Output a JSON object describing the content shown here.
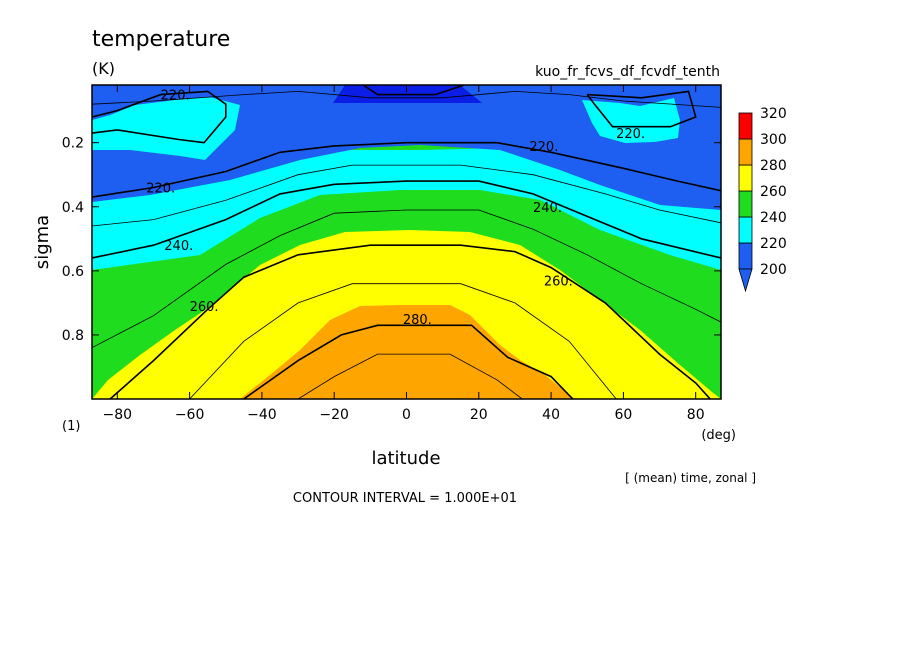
{
  "chart_data": {
    "type": "contour",
    "title": "temperature",
    "units": "(K)",
    "run_name": "kuo_fr_fcvs_df_fcvdf_tenth",
    "xlabel": "latitude",
    "x_unit": "(deg)",
    "ylabel": "sigma",
    "y_unit": "(1)",
    "xlim": [
      -87,
      87
    ],
    "ylim": [
      1.0,
      0.02
    ],
    "x_ticks": [
      -80,
      -60,
      -40,
      -20,
      0,
      20,
      40,
      60,
      80
    ],
    "x_tick_labels": [
      "−80",
      "−60",
      "−40",
      "−20",
      "0",
      "20",
      "40",
      "60",
      "80"
    ],
    "y_ticks": [
      0.2,
      0.4,
      0.6,
      0.8
    ],
    "y_tick_labels": [
      "0.2",
      "0.4",
      "0.6",
      "0.8"
    ],
    "averaging_note": "[ (mean) time, zonal ]",
    "contour_interval_text": "CONTOUR INTERVAL = 1.000E+01",
    "colorbar": {
      "levels": [
        200,
        220,
        240,
        260,
        280,
        300,
        320
      ],
      "labels": [
        "200",
        "220",
        "240",
        "260",
        "280",
        "300",
        "320"
      ],
      "colors": [
        "#1e5ef0",
        "#00ffff",
        "#1fdc1f",
        "#ffff00",
        "#ffa500",
        "#ff0000"
      ],
      "below_color": "#1e5ef0"
    },
    "fill_colors": {
      "lt200": "#0a1ee6",
      "200_220": "#1e5ef0",
      "220_240": "#00ffff",
      "240_260": "#1fdc1f",
      "260_280": "#ffff00",
      "280_300": "#ffa500"
    },
    "contours": [
      {
        "level": 200,
        "label": "",
        "thick": true,
        "points": [
          [
            -12,
            0.02
          ],
          [
            -8,
            0.05
          ],
          [
            8,
            0.05
          ],
          [
            16,
            0.02
          ]
        ]
      },
      {
        "level": 210,
        "label": "",
        "thick": false,
        "points": [
          [
            -87,
            0.08
          ],
          [
            -70,
            0.07
          ],
          [
            -45,
            0.05
          ],
          [
            -30,
            0.04
          ],
          [
            -10,
            0.06
          ],
          [
            10,
            0.06
          ],
          [
            30,
            0.04
          ],
          [
            45,
            0.05
          ],
          [
            60,
            0.07
          ],
          [
            87,
            0.09
          ]
        ]
      },
      {
        "level": 220,
        "label": "220.",
        "thick": true,
        "label_at": [
          -64,
          0.05
        ],
        "points": [
          [
            -87,
            0.12
          ],
          [
            -80,
            0.1
          ],
          [
            -68,
            0.05
          ],
          [
            -55,
            0.04
          ],
          [
            -50,
            0.08
          ],
          [
            -50,
            0.12
          ],
          [
            -56,
            0.2
          ],
          [
            -63,
            0.19
          ],
          [
            -80,
            0.16
          ],
          [
            -87,
            0.17
          ]
        ]
      },
      {
        "level": 220,
        "label": "220.",
        "thick": true,
        "label_at": [
          62,
          0.17
        ],
        "points": [
          [
            50,
            0.05
          ],
          [
            65,
            0.06
          ],
          [
            78,
            0.04
          ],
          [
            80,
            0.12
          ],
          [
            73,
            0.15
          ],
          [
            57,
            0.15
          ],
          [
            52,
            0.08
          ],
          [
            50,
            0.05
          ]
        ]
      },
      {
        "level": 220,
        "label": "220.",
        "thick": true,
        "label_at": [
          -68,
          0.34
        ],
        "points": [
          [
            -87,
            0.37
          ],
          [
            -70,
            0.34
          ],
          [
            -50,
            0.29
          ],
          [
            -35,
            0.23
          ],
          [
            -20,
            0.21
          ],
          [
            0,
            0.2
          ],
          [
            25,
            0.2
          ],
          [
            40,
            0.23
          ],
          [
            60,
            0.28
          ],
          [
            75,
            0.32
          ],
          [
            87,
            0.35
          ]
        ]
      },
      {
        "level": 220,
        "label": "220.",
        "thick": true,
        "label_at": [
          38,
          0.21
        ],
        "points": []
      },
      {
        "level": 230,
        "label": "",
        "thick": false,
        "points": [
          [
            -87,
            0.46
          ],
          [
            -70,
            0.44
          ],
          [
            -50,
            0.38
          ],
          [
            -30,
            0.3
          ],
          [
            -15,
            0.27
          ],
          [
            15,
            0.27
          ],
          [
            35,
            0.3
          ],
          [
            55,
            0.36
          ],
          [
            70,
            0.41
          ],
          [
            87,
            0.45
          ]
        ]
      },
      {
        "level": 240,
        "label": "240.",
        "thick": true,
        "label_at": [
          -63,
          0.52
        ],
        "points": [
          [
            -87,
            0.56
          ],
          [
            -70,
            0.52
          ],
          [
            -50,
            0.44
          ],
          [
            -35,
            0.36
          ],
          [
            -20,
            0.33
          ],
          [
            0,
            0.32
          ],
          [
            20,
            0.32
          ],
          [
            35,
            0.36
          ],
          [
            50,
            0.43
          ],
          [
            65,
            0.5
          ],
          [
            87,
            0.56
          ]
        ]
      },
      {
        "level": 240,
        "label": "240.",
        "thick": true,
        "label_at": [
          39,
          0.4
        ],
        "points": []
      },
      {
        "level": 250,
        "label": "",
        "thick": false,
        "points": [
          [
            -87,
            0.84
          ],
          [
            -70,
            0.74
          ],
          [
            -50,
            0.58
          ],
          [
            -35,
            0.49
          ],
          [
            -20,
            0.42
          ],
          [
            0,
            0.41
          ],
          [
            20,
            0.41
          ],
          [
            35,
            0.47
          ],
          [
            50,
            0.55
          ],
          [
            65,
            0.64
          ],
          [
            80,
            0.72
          ],
          [
            87,
            0.76
          ]
        ]
      },
      {
        "level": 260,
        "label": "260.",
        "thick": true,
        "label_at": [
          -56,
          0.71
        ],
        "points": [
          [
            -82,
            1.0
          ],
          [
            -70,
            0.88
          ],
          [
            -55,
            0.72
          ],
          [
            -45,
            0.62
          ],
          [
            -30,
            0.55
          ],
          [
            -10,
            0.52
          ],
          [
            15,
            0.52
          ],
          [
            30,
            0.54
          ],
          [
            40,
            0.59
          ],
          [
            55,
            0.7
          ],
          [
            70,
            0.86
          ],
          [
            80,
            0.95
          ],
          [
            84,
            1.0
          ]
        ]
      },
      {
        "level": 260,
        "label": "260.",
        "thick": true,
        "label_at": [
          42,
          0.63
        ],
        "points": []
      },
      {
        "level": 270,
        "label": "",
        "thick": false,
        "points": [
          [
            -60,
            1.0
          ],
          [
            -45,
            0.82
          ],
          [
            -30,
            0.7
          ],
          [
            -15,
            0.64
          ],
          [
            15,
            0.64
          ],
          [
            30,
            0.7
          ],
          [
            45,
            0.82
          ],
          [
            58,
            1.0
          ]
        ]
      },
      {
        "level": 280,
        "label": "280.",
        "thick": true,
        "label_at": [
          3,
          0.75
        ],
        "points": [
          [
            -45,
            1.0
          ],
          [
            -30,
            0.88
          ],
          [
            -18,
            0.8
          ],
          [
            -8,
            0.77
          ],
          [
            18,
            0.77
          ],
          [
            28,
            0.87
          ],
          [
            40,
            0.93
          ],
          [
            46,
            1.0
          ]
        ]
      },
      {
        "level": 290,
        "label": "",
        "thick": false,
        "points": [
          [
            -30,
            1.0
          ],
          [
            -20,
            0.93
          ],
          [
            -8,
            0.86
          ],
          [
            12,
            0.86
          ],
          [
            25,
            0.94
          ],
          [
            32,
            1.0
          ]
        ]
      }
    ]
  }
}
